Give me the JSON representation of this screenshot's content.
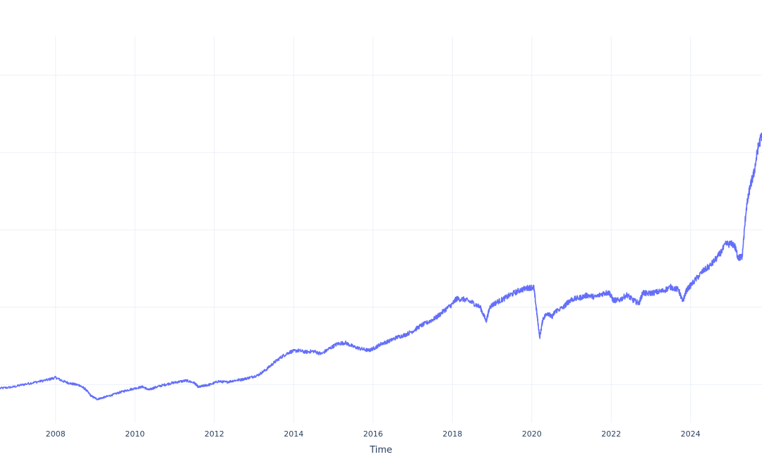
{
  "chart_data": {
    "type": "line",
    "title": "",
    "xlabel": "Time",
    "ylabel": "",
    "xlim": [
      2006.6,
      2025.8
    ],
    "ylim": [
      0,
      1000
    ],
    "x_ticks": [
      2008,
      2010,
      2012,
      2014,
      2016,
      2018,
      2020,
      2022,
      2024
    ],
    "x_tick_labels": [
      "2008",
      "2010",
      "2012",
      "2014",
      "2016",
      "2018",
      "2020",
      "2022",
      "2024"
    ],
    "y_gridlines": [
      100,
      300,
      500,
      700,
      900
    ],
    "grid": true,
    "legend": "none",
    "series": [
      {
        "color": "#636efa",
        "x": [
          2006.6,
          2006.9,
          2007.2,
          2007.5,
          2007.8,
          2008.0,
          2008.2,
          2008.4,
          2008.6,
          2008.75,
          2008.9,
          2009.05,
          2009.2,
          2009.4,
          2009.6,
          2009.8,
          2010.0,
          2010.2,
          2010.35,
          2010.5,
          2010.7,
          2010.9,
          2011.1,
          2011.3,
          2011.5,
          2011.6,
          2011.75,
          2011.9,
          2012.1,
          2012.3,
          2012.5,
          2012.7,
          2012.9,
          2013.1,
          2013.3,
          2013.5,
          2013.7,
          2013.9,
          2014.1,
          2014.3,
          2014.5,
          2014.7,
          2014.9,
          2015.1,
          2015.3,
          2015.5,
          2015.7,
          2015.9,
          2016.05,
          2016.2,
          2016.4,
          2016.6,
          2016.8,
          2017.0,
          2017.2,
          2017.4,
          2017.6,
          2017.8,
          2018.0,
          2018.1,
          2018.3,
          2018.5,
          2018.7,
          2018.85,
          2018.95,
          2019.1,
          2019.3,
          2019.5,
          2019.7,
          2019.9,
          2020.05,
          2020.12,
          2020.2,
          2020.28,
          2020.4,
          2020.5,
          2020.6,
          2020.8,
          2020.9,
          2021.0,
          2021.2,
          2021.4,
          2021.6,
          2021.8,
          2021.95,
          2022.05,
          2022.2,
          2022.4,
          2022.55,
          2022.7,
          2022.8,
          2022.9,
          2023.1,
          2023.3,
          2023.5,
          2023.7,
          2023.8,
          2023.9,
          2024.1,
          2024.3,
          2024.5,
          2024.7,
          2024.9,
          2025.1,
          2025.2,
          2025.3,
          2025.4,
          2025.5,
          2025.6,
          2025.7,
          2025.8
        ],
        "y": [
          90,
          93,
          100,
          106,
          112,
          118,
          108,
          102,
          98,
          88,
          70,
          62,
          66,
          72,
          79,
          85,
          90,
          94,
          86,
          92,
          98,
          103,
          107,
          110,
          104,
          93,
          97,
          100,
          108,
          106,
          110,
          113,
          118,
          124,
          138,
          156,
          172,
          184,
          188,
          184,
          186,
          179,
          193,
          205,
          208,
          198,
          192,
          188,
          195,
          205,
          212,
          222,
          228,
          238,
          252,
          262,
          274,
          292,
          308,
          322,
          320,
          312,
          300,
          264,
          302,
          312,
          322,
          334,
          344,
          350,
          352,
          290,
          222,
          270,
          286,
          274,
          290,
          300,
          312,
          320,
          324,
          331,
          326,
          336,
          338,
          318,
          318,
          332,
          318,
          310,
          338,
          335,
          338,
          342,
          352,
          345,
          314,
          344,
          368,
          392,
          408,
          432,
          464,
          462,
          428,
          430,
          552,
          612,
          648,
          712,
          748
        ]
      }
    ]
  }
}
